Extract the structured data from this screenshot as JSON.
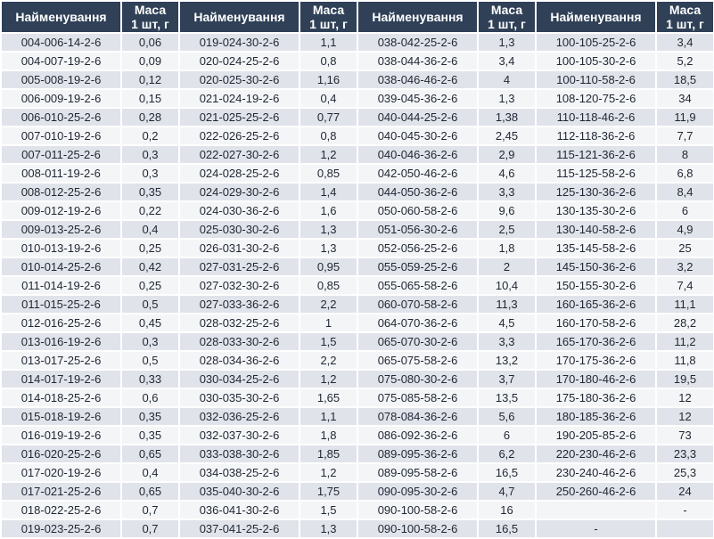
{
  "header": {
    "name_label": "Найменування",
    "mass_label_line1": "Маса",
    "mass_label_line2": "1 шт, г"
  },
  "groups": [
    {
      "rows": [
        {
          "name": "004-006-14-2-6",
          "mass": "0,06"
        },
        {
          "name": "004-007-19-2-6",
          "mass": "0,09"
        },
        {
          "name": "005-008-19-2-6",
          "mass": "0,12"
        },
        {
          "name": "006-009-19-2-6",
          "mass": "0,15"
        },
        {
          "name": "006-010-25-2-6",
          "mass": "0,28"
        },
        {
          "name": "007-010-19-2-6",
          "mass": "0,2"
        },
        {
          "name": "007-011-25-2-6",
          "mass": "0,3"
        },
        {
          "name": "008-011-19-2-6",
          "mass": "0,3"
        },
        {
          "name": "008-012-25-2-6",
          "mass": "0,35"
        },
        {
          "name": "009-012-19-2-6",
          "mass": "0,22"
        },
        {
          "name": "009-013-25-2-6",
          "mass": "0,4"
        },
        {
          "name": "010-013-19-2-6",
          "mass": "0,25"
        },
        {
          "name": "010-014-25-2-6",
          "mass": "0,42"
        },
        {
          "name": "011-014-19-2-6",
          "mass": "0,25"
        },
        {
          "name": "011-015-25-2-6",
          "mass": "0,5"
        },
        {
          "name": "012-016-25-2-6",
          "mass": "0,45"
        },
        {
          "name": "013-016-19-2-6",
          "mass": "0,3"
        },
        {
          "name": "013-017-25-2-6",
          "mass": "0,5"
        },
        {
          "name": "014-017-19-2-6",
          "mass": "0,33"
        },
        {
          "name": "014-018-25-2-6",
          "mass": "0,6"
        },
        {
          "name": "015-018-19-2-6",
          "mass": "0,35"
        },
        {
          "name": "016-019-19-2-6",
          "mass": "0,35"
        },
        {
          "name": "016-020-25-2-6",
          "mass": "0,65"
        },
        {
          "name": "017-020-19-2-6",
          "mass": "0,4"
        },
        {
          "name": "017-021-25-2-6",
          "mass": "0,65"
        },
        {
          "name": "018-022-25-2-6",
          "mass": "0,7"
        },
        {
          "name": "019-023-25-2-6",
          "mass": "0,7"
        }
      ]
    },
    {
      "rows": [
        {
          "name": "019-024-30-2-6",
          "mass": "1,1"
        },
        {
          "name": "020-024-25-2-6",
          "mass": "0,8"
        },
        {
          "name": "020-025-30-2-6",
          "mass": "1,16"
        },
        {
          "name": "021-024-19-2-6",
          "mass": "0,4"
        },
        {
          "name": "021-025-25-2-6",
          "mass": "0,77"
        },
        {
          "name": "022-026-25-2-6",
          "mass": "0,8"
        },
        {
          "name": "022-027-30-2-6",
          "mass": "1,2"
        },
        {
          "name": "024-028-25-2-6",
          "mass": "0,85"
        },
        {
          "name": "024-029-30-2-6",
          "mass": "1,4"
        },
        {
          "name": "024-030-36-2-6",
          "mass": "1,6"
        },
        {
          "name": "025-030-30-2-6",
          "mass": "1,3"
        },
        {
          "name": "026-031-30-2-6",
          "mass": "1,3"
        },
        {
          "name": "027-031-25-2-6",
          "mass": "0,95"
        },
        {
          "name": "027-032-30-2-6",
          "mass": "0,85"
        },
        {
          "name": "027-033-36-2-6",
          "mass": "2,2"
        },
        {
          "name": "028-032-25-2-6",
          "mass": "1"
        },
        {
          "name": "028-033-30-2-6",
          "mass": "1,5"
        },
        {
          "name": "028-034-36-2-6",
          "mass": "2,2"
        },
        {
          "name": "030-034-25-2-6",
          "mass": "1,2"
        },
        {
          "name": "030-035-30-2-6",
          "mass": "1,65"
        },
        {
          "name": "032-036-25-2-6",
          "mass": "1,1"
        },
        {
          "name": "032-037-30-2-6",
          "mass": "1,8"
        },
        {
          "name": "033-038-30-2-6",
          "mass": "1,85"
        },
        {
          "name": "034-038-25-2-6",
          "mass": "1,2"
        },
        {
          "name": "035-040-30-2-6",
          "mass": "1,75"
        },
        {
          "name": "036-041-30-2-6",
          "mass": "1,5"
        },
        {
          "name": "037-041-25-2-6",
          "mass": "1,3"
        }
      ]
    },
    {
      "rows": [
        {
          "name": "038-042-25-2-6",
          "mass": "1,3"
        },
        {
          "name": "038-044-36-2-6",
          "mass": "3,4"
        },
        {
          "name": "038-046-46-2-6",
          "mass": "4"
        },
        {
          "name": "039-045-36-2-6",
          "mass": "1,3"
        },
        {
          "name": "040-044-25-2-6",
          "mass": "1,38"
        },
        {
          "name": "040-045-30-2-6",
          "mass": "2,45"
        },
        {
          "name": "040-046-36-2-6",
          "mass": "2,9"
        },
        {
          "name": "042-050-46-2-6",
          "mass": "4,6"
        },
        {
          "name": "044-050-36-2-6",
          "mass": "3,3"
        },
        {
          "name": "050-060-58-2-6",
          "mass": "9,6"
        },
        {
          "name": "051-056-30-2-6",
          "mass": "2,5"
        },
        {
          "name": "052-056-25-2-6",
          "mass": "1,8"
        },
        {
          "name": "055-059-25-2-6",
          "mass": "2"
        },
        {
          "name": "055-065-58-2-6",
          "mass": "10,4"
        },
        {
          "name": "060-070-58-2-6",
          "mass": "11,3"
        },
        {
          "name": "064-070-36-2-6",
          "mass": "4,5"
        },
        {
          "name": "065-070-30-2-6",
          "mass": "3,3"
        },
        {
          "name": "065-075-58-2-6",
          "mass": "13,2"
        },
        {
          "name": "075-080-30-2-6",
          "mass": "3,7"
        },
        {
          "name": "075-085-58-2-6",
          "mass": "13,5"
        },
        {
          "name": "078-084-36-2-6",
          "mass": "5,6"
        },
        {
          "name": "086-092-36-2-6",
          "mass": "6"
        },
        {
          "name": "089-095-36-2-6",
          "mass": "6,2"
        },
        {
          "name": "089-095-58-2-6",
          "mass": "16,5"
        },
        {
          "name": "090-095-30-2-6",
          "mass": "4,7"
        },
        {
          "name": "090-100-58-2-6",
          "mass": "16"
        },
        {
          "name": "090-100-58-2-6",
          "mass": "16,5"
        }
      ]
    },
    {
      "rows": [
        {
          "name": "100-105-25-2-6",
          "mass": "3,4"
        },
        {
          "name": "100-105-30-2-6",
          "mass": "5,2"
        },
        {
          "name": "100-110-58-2-6",
          "mass": "18,5"
        },
        {
          "name": "108-120-75-2-6",
          "mass": "34"
        },
        {
          "name": "110-118-46-2-6",
          "mass": "11,9"
        },
        {
          "name": "112-118-36-2-6",
          "mass": "7,7"
        },
        {
          "name": "115-121-36-2-6",
          "mass": "8"
        },
        {
          "name": "115-125-58-2-6",
          "mass": "6,8"
        },
        {
          "name": "125-130-36-2-6",
          "mass": "8,4"
        },
        {
          "name": "130-135-30-2-6",
          "mass": "6"
        },
        {
          "name": "130-140-58-2-6",
          "mass": "4,9"
        },
        {
          "name": "135-145-58-2-6",
          "mass": "25"
        },
        {
          "name": "145-150-36-2-6",
          "mass": "3,2"
        },
        {
          "name": "150-155-30-2-6",
          "mass": "7,4"
        },
        {
          "name": "160-165-36-2-6",
          "mass": "11,1"
        },
        {
          "name": "160-170-58-2-6",
          "mass": "28,2"
        },
        {
          "name": "165-170-36-2-6",
          "mass": "11,2"
        },
        {
          "name": "170-175-36-2-6",
          "mass": "11,8"
        },
        {
          "name": "170-180-46-2-6",
          "mass": "19,5"
        },
        {
          "name": "175-180-36-2-6",
          "mass": "12"
        },
        {
          "name": "180-185-36-2-6",
          "mass": "12"
        },
        {
          "name": "190-205-85-2-6",
          "mass": "73"
        },
        {
          "name": "220-230-46-2-6",
          "mass": "23,3"
        },
        {
          "name": "230-240-46-2-6",
          "mass": "25,3"
        },
        {
          "name": "250-260-46-2-6",
          "mass": "24"
        },
        {
          "name": "",
          "mass": "-"
        },
        {
          "name": "-",
          "mass": ""
        }
      ]
    }
  ],
  "colors": {
    "header_bg": "#2F4057",
    "row_odd": "#E0E3EA",
    "row_even": "#F4F5F7",
    "header_text": "#FFFFFF",
    "cell_text": "#1F2733",
    "bottom_bar": "#24384E",
    "bottom_bar_highlight": "#7E9AB5"
  }
}
